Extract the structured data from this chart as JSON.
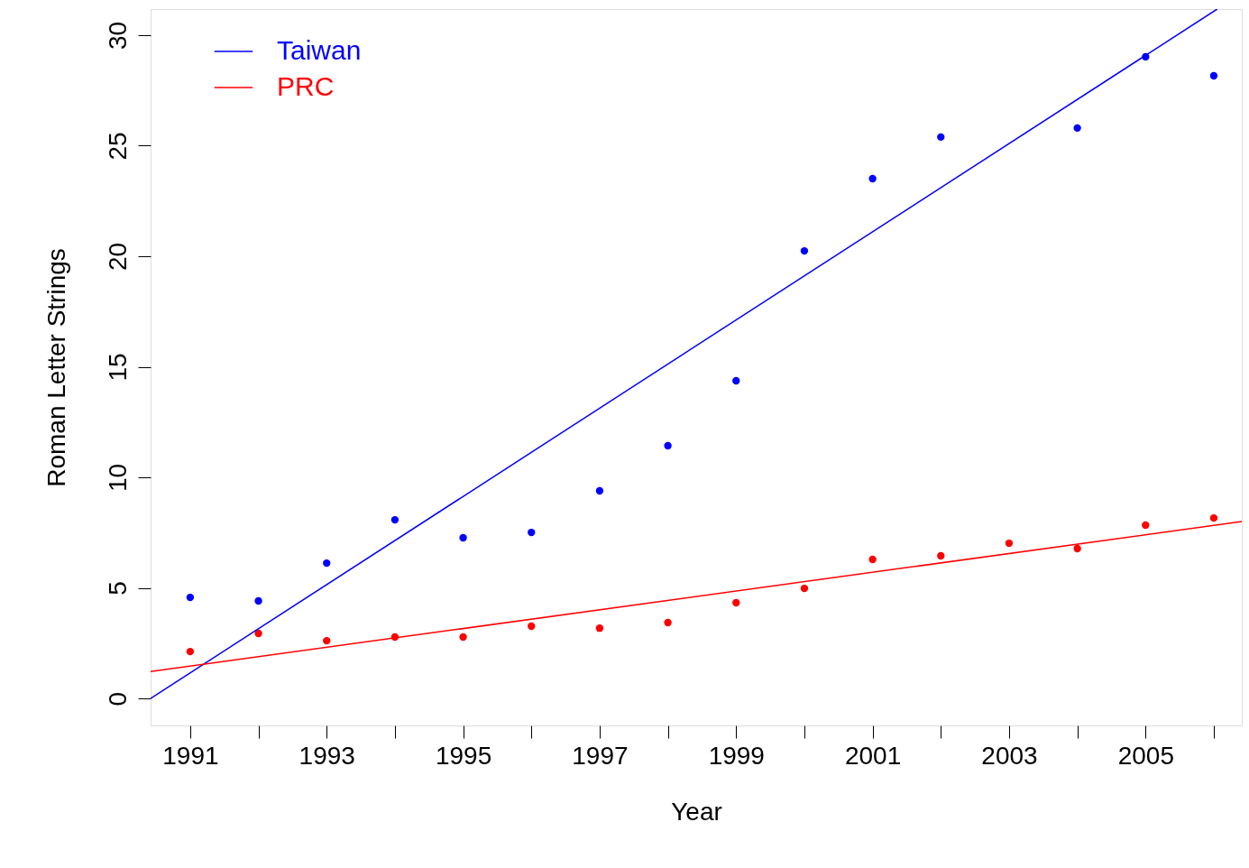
{
  "chart_data": {
    "type": "scatter",
    "xlabel": "Year",
    "ylabel": "Roman Letter Strings",
    "x": [
      1991,
      1992,
      1993,
      1994,
      1995,
      1996,
      1997,
      1998,
      1999,
      2000,
      2001,
      2002,
      2003,
      2004,
      2005,
      2006
    ],
    "series": [
      {
        "marker": "circle",
        "color": "#0000ff",
        "values": [
          4.57,
          4.41,
          6.12,
          8.08,
          7.27,
          7.51,
          9.39,
          11.43,
          14.37,
          20.24,
          23.51,
          25.39,
          null,
          25.8,
          29.02,
          28.16
        ]
      },
      {
        "marker": "circle",
        "color": "#ff0000",
        "values": [
          2.12,
          2.94,
          2.61,
          2.78,
          2.78,
          3.27,
          3.18,
          3.43,
          4.33,
          4.98,
          6.29,
          6.45,
          7.02,
          6.78,
          7.84,
          8.16
        ]
      },
      {
        "type": "line",
        "marker": "none",
        "name": "Taiwan",
        "color": "#0000ff",
        "x": [
          1990.42,
          2006.05
        ],
        "values": [
          0,
          31.18
        ]
      },
      {
        "type": "line",
        "marker": "none",
        "name": "PRC",
        "color": "#ff0000",
        "x": [
          1990.42,
          2006.41
        ],
        "values": [
          1.22,
          8.0
        ]
      }
    ],
    "xlim": [
      1990.42,
      2006.41
    ],
    "ylim": [
      -1.22,
      31.18
    ],
    "xticks": [
      1991,
      {
        "value": 1992,
        "label": null
      },
      1993,
      {
        "value": 1994,
        "label": null
      },
      1995,
      {
        "value": 1996,
        "label": null
      },
      1997,
      {
        "value": 1998,
        "label": null
      },
      1999,
      {
        "value": 2000,
        "label": null
      },
      2001,
      {
        "value": 2002,
        "label": null
      },
      2003,
      {
        "value": 2004,
        "label": null
      },
      2005,
      {
        "value": 2006,
        "label": null
      }
    ],
    "yticks": [
      0,
      5,
      10,
      15,
      20,
      25,
      30
    ],
    "grid": false,
    "legend": "top left"
  }
}
